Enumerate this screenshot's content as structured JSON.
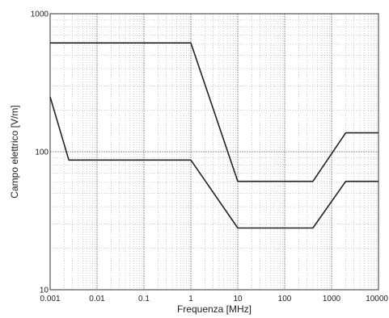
{
  "chart_data": {
    "type": "line",
    "xlabel": "Frequenza [MHz]",
    "ylabel": "Campo elettrico [V/m]",
    "x_scale": "log",
    "y_scale": "log",
    "xlim": [
      0.001,
      10000
    ],
    "ylim": [
      10,
      1000
    ],
    "grid": true,
    "x_ticks": [
      {
        "value": 0.001,
        "label": "0.001"
      },
      {
        "value": 0.01,
        "label": "0.01"
      },
      {
        "value": 0.1,
        "label": "0.1"
      },
      {
        "value": 1,
        "label": "1"
      },
      {
        "value": 10,
        "label": "10"
      },
      {
        "value": 100,
        "label": "100"
      },
      {
        "value": 1000,
        "label": "1000"
      },
      {
        "value": 10000,
        "label": "10000"
      }
    ],
    "y_ticks": [
      {
        "value": 10,
        "label": "10"
      },
      {
        "value": 100,
        "label": "100"
      },
      {
        "value": 1000,
        "label": "1000"
      }
    ],
    "series": [
      {
        "color": "#222222",
        "x": [
          0.001,
          1,
          10,
          400,
          2000,
          10000
        ],
        "y": [
          614,
          614,
          61,
          61,
          137,
          137
        ]
      },
      {
        "color": "#222222",
        "x": [
          0.001,
          0.0025,
          1,
          10,
          400,
          2000,
          10000
        ],
        "y": [
          250,
          87,
          87,
          28,
          28,
          61,
          61
        ]
      }
    ]
  }
}
